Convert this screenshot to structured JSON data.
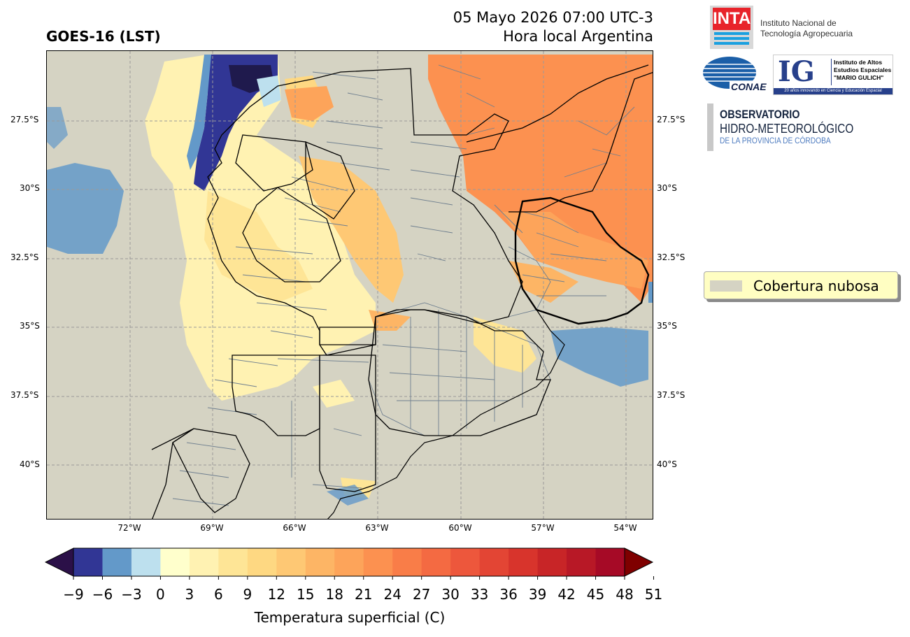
{
  "header": {
    "title": "GOES-16 (LST)",
    "datetime": "05 Mayo 2026 07:00 UTC-3",
    "timezone_label": "Hora local Argentina"
  },
  "map": {
    "lat_labels": [
      "27.5°S",
      "30°S",
      "32.5°S",
      "35°S",
      "37.5°S",
      "40°S"
    ],
    "lon_labels": [
      "72°W",
      "69°W",
      "66°W",
      "63°W",
      "60°W",
      "57°W",
      "54°W"
    ],
    "colors": {
      "cloud": "#d5d3c3",
      "border": "#000000",
      "department": "#6f7f8f",
      "grid": "#9a9a9a"
    }
  },
  "legend": {
    "cloud_label": "Cobertura nubosa",
    "cloud_color": "#d5d3c3"
  },
  "colorbar": {
    "label": "Temperatura superficial (C)",
    "ticks": [
      "−9",
      "−6",
      "−3",
      "0",
      "3",
      "6",
      "9",
      "12",
      "15",
      "18",
      "21",
      "24",
      "27",
      "30",
      "33",
      "36",
      "39",
      "42",
      "45",
      "48",
      "51"
    ],
    "under_color": "#2b1048",
    "over_color": "#7f0000",
    "colors": [
      "#313695",
      "#6399c9",
      "#bde0ee",
      "#ffffcc",
      "#fff2b2",
      "#fee596",
      "#fed882",
      "#fec874",
      "#fdb565",
      "#fda45a",
      "#fc9150",
      "#f97d48",
      "#f46a42",
      "#ed573c",
      "#e34534",
      "#d8342c",
      "#c82527",
      "#b81826",
      "#a60a26"
    ]
  },
  "logos": {
    "inta_mark": "INTA",
    "inta_line1": "Instituto Nacional de",
    "inta_line2": "Tecnología Agropecuaria",
    "conae": "CONAE",
    "ig_mark": "IG",
    "ig_line1": "Instituto de Altos",
    "ig_line2": "Estudios Espaciales",
    "ig_line3": "\"MARIO GULICH\"",
    "ig_tagline": "20 años innovando en Ciencia y Educación Espacial",
    "obs_line1": "OBSERVATORIO",
    "obs_line2": "HIDRO-METEOROLÓGICO",
    "obs_line3": "DE LA PROVINCIA DE CÓRDOBA"
  }
}
